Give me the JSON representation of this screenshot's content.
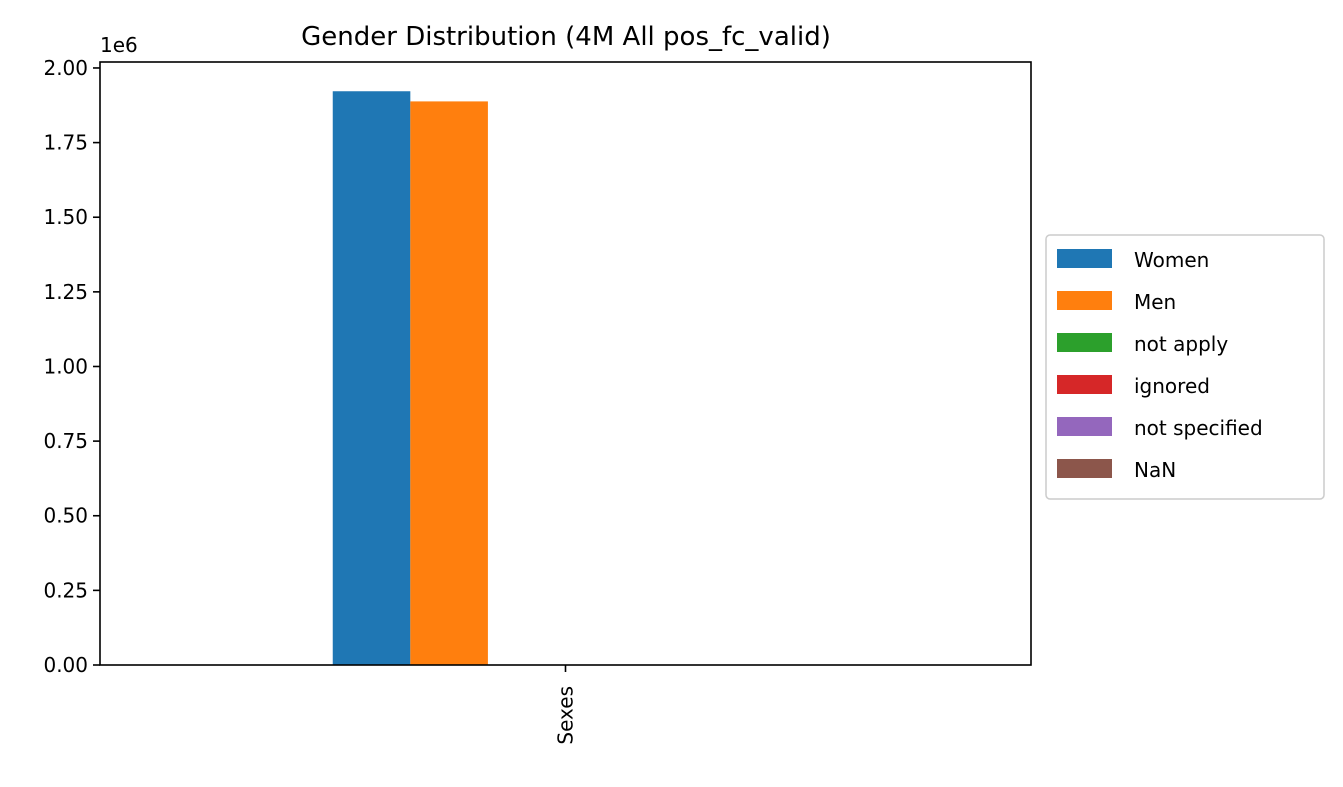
{
  "chart_data": {
    "type": "bar",
    "title": "Gender Distribution (4M All pos_fc_valid)",
    "xlabel": "",
    "ylabel": "",
    "categories": [
      "Sexes"
    ],
    "y_offset_label": "1e6",
    "y_scale": 1000000,
    "ylim": [
      0,
      2020000
    ],
    "yticks": [
      0,
      250000,
      500000,
      750000,
      1000000,
      1250000,
      1500000,
      1750000,
      2000000
    ],
    "ytick_labels": [
      "0.00",
      "0.25",
      "0.50",
      "0.75",
      "1.00",
      "1.25",
      "1.50",
      "1.75",
      "2.00"
    ],
    "grid": false,
    "legend": "center-right-outside",
    "series": [
      {
        "name": "Women",
        "color": "#1f77b4",
        "values": [
          1922000
        ]
      },
      {
        "name": "Men",
        "color": "#ff7f0e",
        "values": [
          1888000
        ]
      },
      {
        "name": "not apply",
        "color": "#2ca02c",
        "values": [
          0
        ]
      },
      {
        "name": "ignored",
        "color": "#d62728",
        "values": [
          0
        ]
      },
      {
        "name": "not specified",
        "color": "#9467bd",
        "values": [
          0
        ]
      },
      {
        "name": "NaN",
        "color": "#8c564b",
        "values": [
          0
        ]
      }
    ]
  }
}
